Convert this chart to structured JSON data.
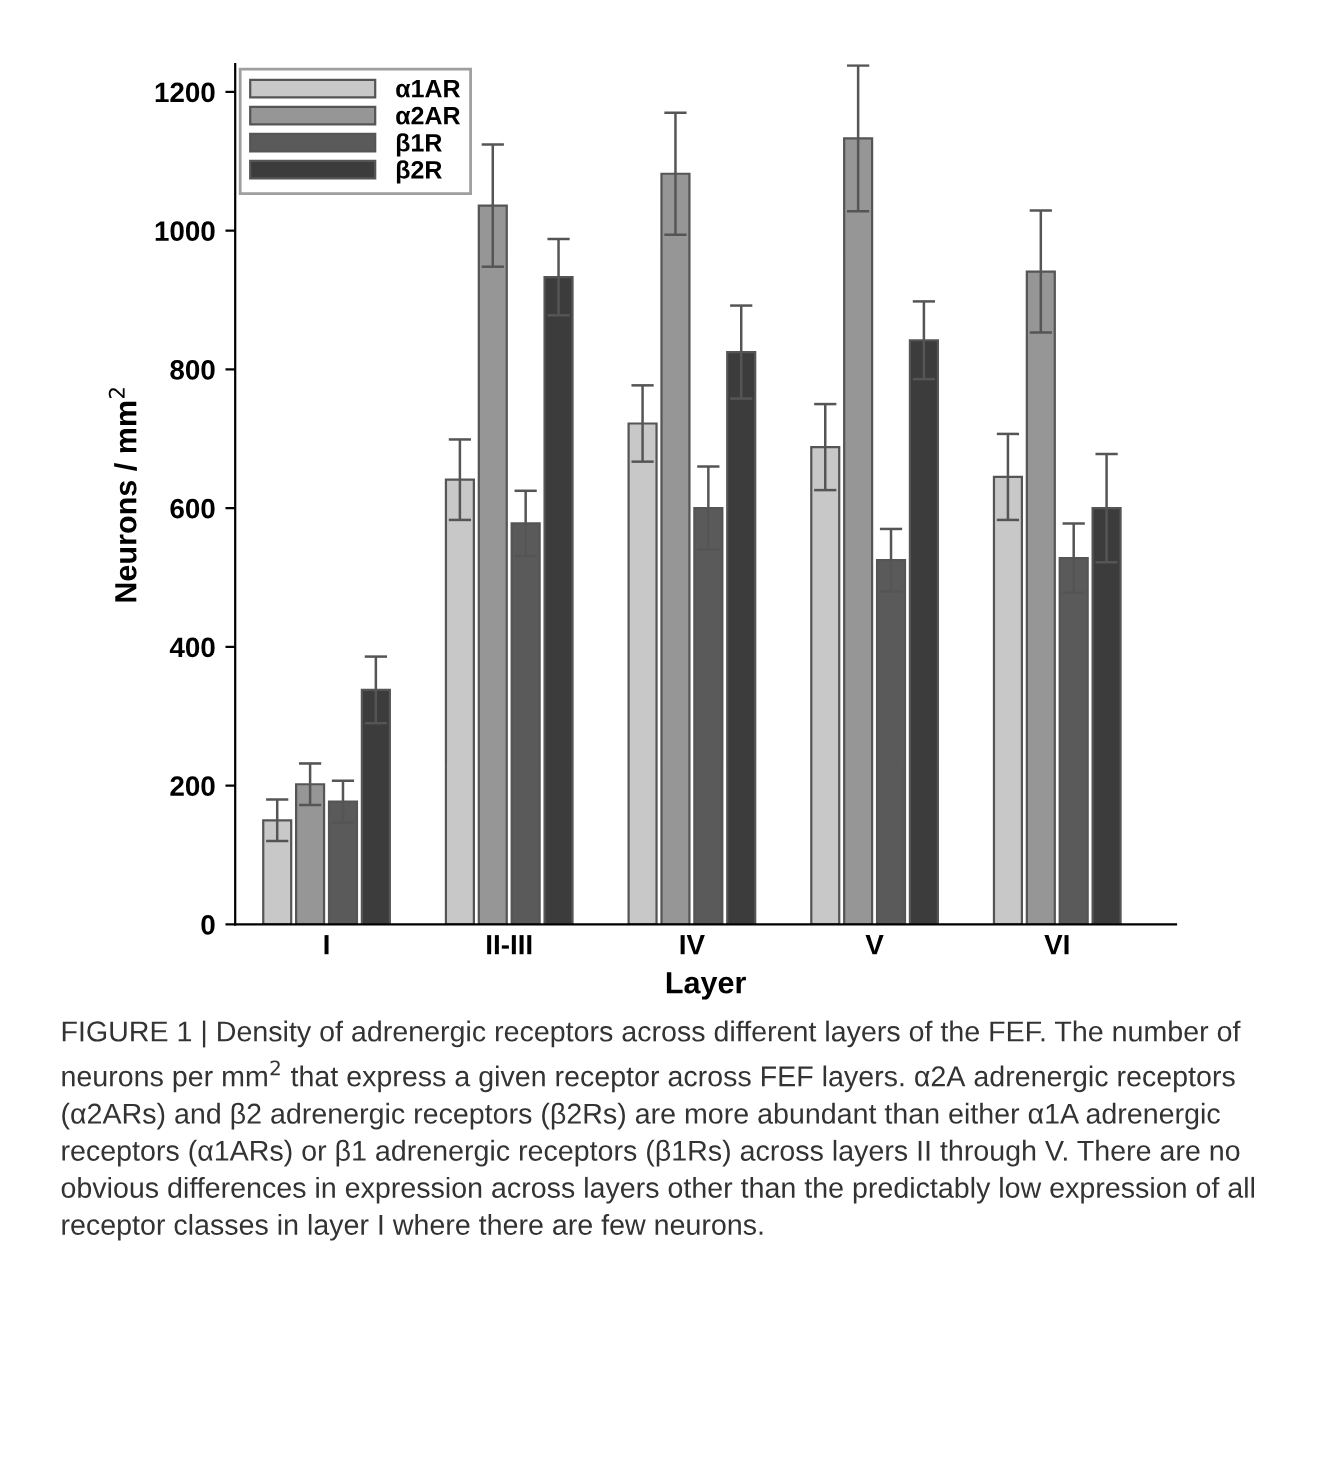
{
  "chart_data": {
    "type": "bar",
    "xlabel": "Layer",
    "ylabel": "Neurons / mm$^{2}$",
    "categories": [
      "I",
      "II-III",
      "IV",
      "V",
      "VI"
    ],
    "series": [
      {
        "name": "α1AR",
        "color": "#c8c8c8",
        "values": [
          150,
          641,
          722,
          688,
          645
        ],
        "errors": [
          30,
          58,
          55,
          62,
          62
        ]
      },
      {
        "name": "α2AR",
        "color": "#969696",
        "values": [
          202,
          1036,
          1082,
          1133,
          941
        ],
        "errors": [
          30,
          88,
          88,
          105,
          88
        ]
      },
      {
        "name": "β1R",
        "color": "#5a5a5a",
        "values": [
          177,
          578,
          600,
          525,
          528
        ],
        "errors": [
          30,
          47,
          60,
          45,
          50
        ]
      },
      {
        "name": "β2R",
        "color": "#3c3c3c",
        "values": [
          338,
          933,
          825,
          842,
          600
        ],
        "errors": [
          48,
          55,
          67,
          56,
          78
        ]
      }
    ],
    "ylim": [
      0,
      1240
    ],
    "yticks": [
      0,
      200,
      400,
      600,
      800,
      1000,
      1200
    ],
    "grid": false,
    "legend": "top left",
    "annotations": [
      "FIGURE 1 | Density of adrenergic receptors across different layers of the FEF. The number of neurons per mm$^{2}$ that express a given receptor across FEF layers. α2A adrenergic receptors (α2ARs) and β2 adrenergic receptors (β2Rs) are more abundant than either α1A adrenergic receptors (α1ARs) or β1 adrenergic receptors (β1Rs) across layers II through V. There are no obvious differences in expression across layers other than the predictably low expression of all receptor classes in layer I where there are few neurons."
    ]
  }
}
